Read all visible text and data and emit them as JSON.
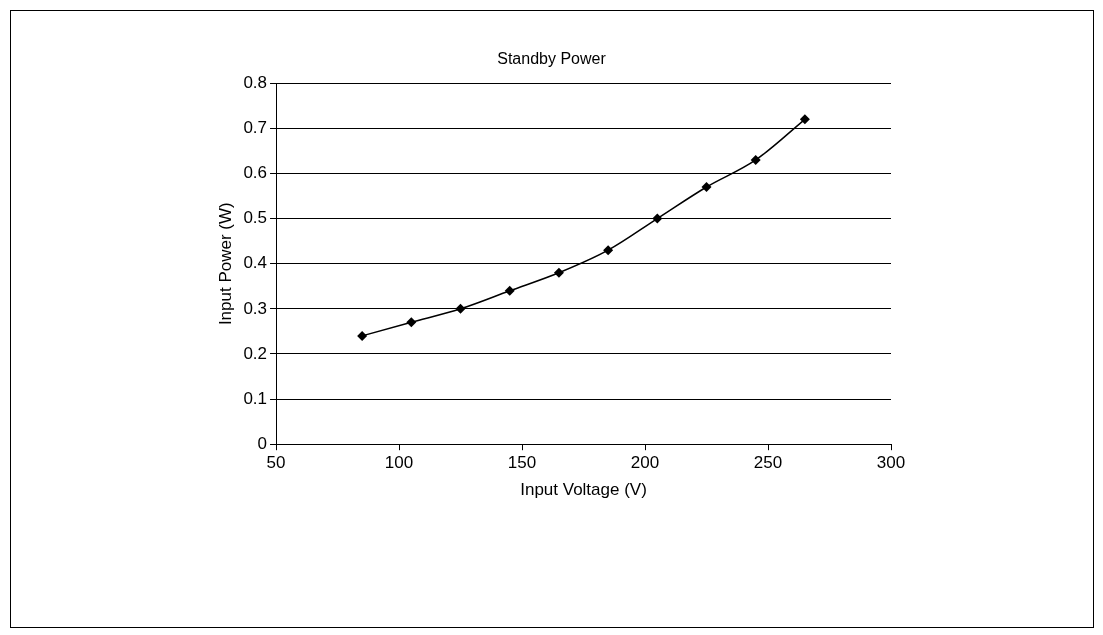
{
  "chart_data": {
    "type": "line",
    "title": "Standby Power",
    "xlabel": "Input Voltage (V)",
    "ylabel": "Input Power (W)",
    "x": [
      85,
      105,
      125,
      145,
      165,
      185,
      205,
      225,
      245,
      265
    ],
    "series": [
      {
        "color": "#000000",
        "values": [
          0.24,
          0.27,
          0.3,
          0.34,
          0.38,
          0.43,
          0.5,
          0.57,
          0.63,
          0.72
        ]
      }
    ],
    "xlim": [
      50,
      300
    ],
    "xticks": [
      50,
      100,
      150,
      200,
      250,
      300
    ],
    "ylim": [
      0,
      0.8
    ],
    "yticks": [
      0,
      0.1,
      0.2,
      0.3,
      0.4,
      0.5,
      0.6,
      0.7,
      0.8
    ],
    "grid": "y",
    "legend": false,
    "marker": "diamond",
    "line_style": "solid"
  }
}
